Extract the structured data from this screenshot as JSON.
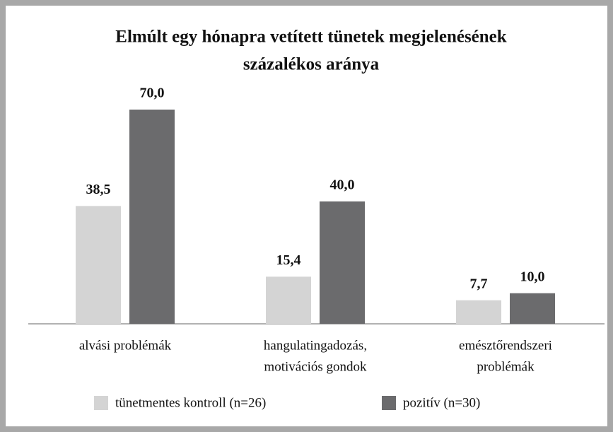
{
  "chart_data": {
    "type": "bar",
    "title": [
      "Elmúlt egy hónapra vetített tünetek megjelenésének",
      "százalékos aránya"
    ],
    "categories": [
      [
        "alvási problémák"
      ],
      [
        "hangulatingadozás,",
        "motivációs gondok"
      ],
      [
        "emésztőrendszeri",
        "problémák"
      ]
    ],
    "series": [
      {
        "name": "tünetmentes kontroll (n=26)",
        "color": "#d4d4d4",
        "values": [
          38.5,
          15.4,
          7.7
        ],
        "value_labels": [
          "38,5",
          "15,4",
          "7,7"
        ]
      },
      {
        "name": "pozitív (n=30)",
        "color": "#6b6b6d",
        "values": [
          70.0,
          40.0,
          10.0
        ],
        "value_labels": [
          "70,0",
          "40,0",
          "10,0"
        ]
      }
    ],
    "legend": "bottom"
  }
}
